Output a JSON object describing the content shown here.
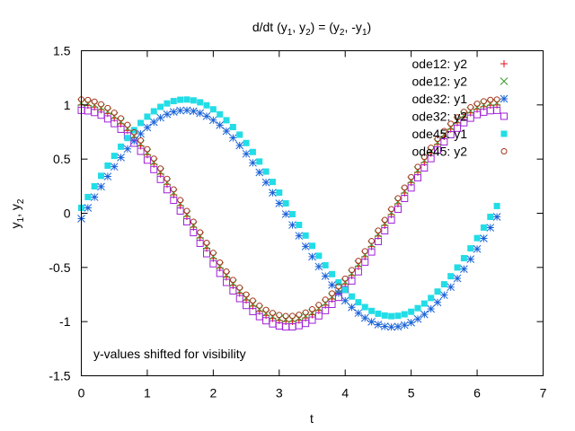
{
  "chart_data": {
    "type": "scatter",
    "title": {
      "main": "d/dt (y",
      "s1": "1",
      "mid1": ", y",
      "s2": "2",
      "mid2": ") = (y",
      "s3": "2",
      "mid3": ", -y",
      "s4": "1",
      "end": ")"
    },
    "xlabel": "t",
    "ylabel": {
      "base1": "y",
      "sub1": "1",
      "sep": ", y",
      "sub2": "2"
    },
    "xlim": [
      0,
      7
    ],
    "ylim": [
      -1.5,
      1.5
    ],
    "xticks": [
      "0",
      "1",
      "2",
      "3",
      "4",
      "5",
      "6",
      "7"
    ],
    "yticks": [
      "1.5",
      "1",
      "0.5",
      "0",
      "-0.5",
      "-1",
      "-1.5"
    ],
    "grid": false,
    "legend_position": "top-right",
    "annotation": "y-values shifted for visibility",
    "t_range": [
      0,
      6.3
    ],
    "point_count": 64,
    "series": [
      {
        "name": "ode12: y2",
        "marker": "plus",
        "color": "#e8101c",
        "function": "cos",
        "shift": 0.0
      },
      {
        "name": "ode12: y2",
        "marker": "cross",
        "color": "#3a9a2c",
        "function": "cos",
        "shift": 0.02
      },
      {
        "name": "ode32: y1",
        "marker": "star",
        "color": "#1a63d8",
        "function": "sin",
        "shift": -0.05
      },
      {
        "name": "ode32: y2",
        "marker": "square-open",
        "color": "#a020d8",
        "function": "cos",
        "shift": -0.05
      },
      {
        "name": "ode45: y1",
        "marker": "square-filled",
        "color": "#22dde6",
        "function": "sin",
        "shift": 0.05
      },
      {
        "name": "ode45: y2",
        "marker": "circle-open",
        "color": "#a8351c",
        "function": "cos",
        "shift": 0.05
      }
    ]
  }
}
